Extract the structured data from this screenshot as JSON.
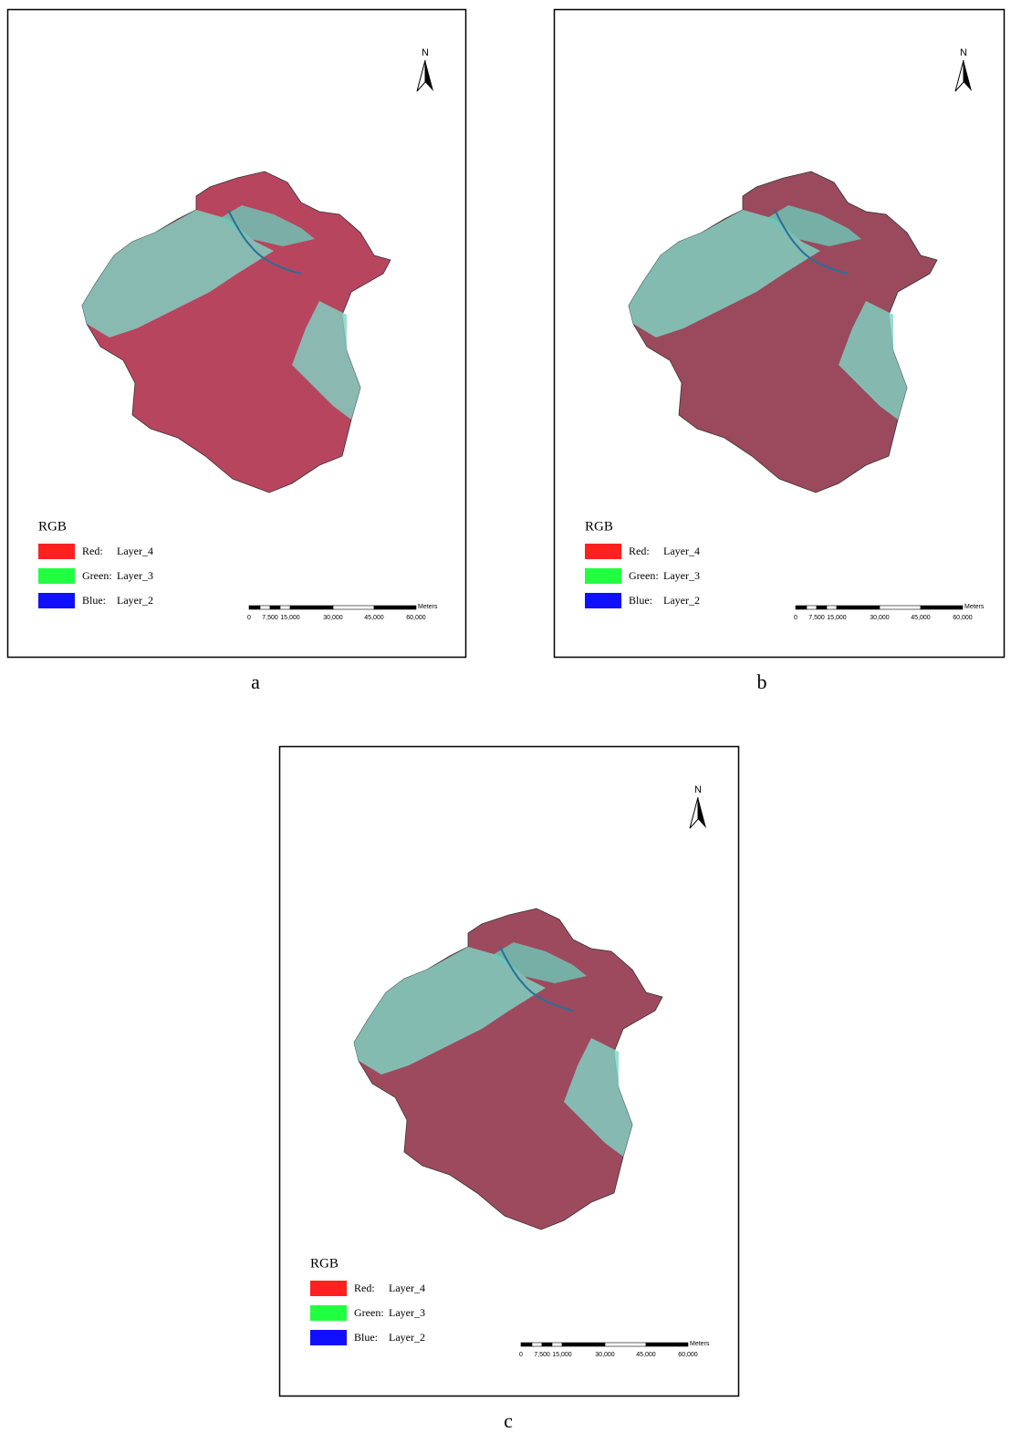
{
  "figure": {
    "panels": [
      {
        "label": "a",
        "north": "N",
        "legend": {
          "title": "RGB",
          "items": [
            {
              "band": "Red:",
              "layer": "Layer_4",
              "color": "#ff2020"
            },
            {
              "band": "Green:",
              "layer": "Layer_3",
              "color": "#20ff40"
            },
            {
              "band": "Blue:",
              "layer": "Layer_2",
              "color": "#1010ff"
            }
          ]
        },
        "scale_bar": {
          "unit": "Meters",
          "labels": [
            "0",
            "7,500",
            "15,000",
            "30,000",
            "45,000",
            "60,000"
          ]
        }
      },
      {
        "label": "b",
        "north": "N",
        "legend": {
          "title": "RGB",
          "items": [
            {
              "band": "Red:",
              "layer": "Layer_4",
              "color": "#ff2020"
            },
            {
              "band": "Green:",
              "layer": "Layer_3",
              "color": "#20ff40"
            },
            {
              "band": "Blue:",
              "layer": "Layer_2",
              "color": "#1010ff"
            }
          ]
        },
        "scale_bar": {
          "unit": "Meters",
          "labels": [
            "0",
            "7,500",
            "15,000",
            "30,000",
            "45,000",
            "60,000"
          ]
        }
      },
      {
        "label": "c",
        "north": "N",
        "legend": {
          "title": "RGB",
          "items": [
            {
              "band": "Red:",
              "layer": "Layer_4",
              "color": "#ff2020"
            },
            {
              "band": "Green:",
              "layer": "Layer_3",
              "color": "#20ff40"
            },
            {
              "band": "Blue:",
              "layer": "Layer_2",
              "color": "#1010ff"
            }
          ]
        },
        "scale_bar": {
          "unit": "Meters",
          "labels": [
            "0",
            "7,500",
            "15,000",
            "30,000",
            "45,000",
            "60,000"
          ]
        }
      }
    ]
  }
}
